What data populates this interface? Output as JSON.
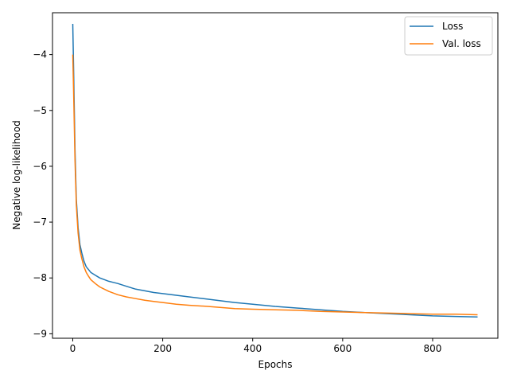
{
  "chart_data": {
    "type": "line",
    "title": "",
    "xlabel": "Epochs",
    "ylabel": "Negative log-likelihood",
    "xlim": [
      -45,
      945
    ],
    "ylim": [
      -9.08,
      -3.25
    ],
    "xticks": [
      0,
      200,
      400,
      600,
      800
    ],
    "xtick_labels": [
      "0",
      "200",
      "400",
      "600",
      "800"
    ],
    "yticks": [
      -9,
      -8,
      -7,
      -6,
      -5,
      -4
    ],
    "ytick_labels": [
      "−9",
      "−8",
      "−7",
      "−6",
      "−5",
      "−4"
    ],
    "grid": false,
    "legend_position": "top-right",
    "series": [
      {
        "name": "Loss",
        "color": "#1f77b4",
        "x": [
          0,
          2,
          5,
          8,
          12,
          16,
          20,
          25,
          30,
          35,
          40,
          50,
          60,
          70,
          80,
          90,
          100,
          120,
          140,
          160,
          180,
          200,
          230,
          260,
          300,
          330,
          360,
          400,
          450,
          500,
          550,
          600,
          650,
          700,
          750,
          800,
          850,
          900
        ],
        "y": [
          -3.45,
          -4.3,
          -5.7,
          -6.6,
          -7.1,
          -7.4,
          -7.55,
          -7.7,
          -7.8,
          -7.85,
          -7.9,
          -7.95,
          -8.0,
          -8.03,
          -8.06,
          -8.08,
          -8.1,
          -8.15,
          -8.2,
          -8.23,
          -8.26,
          -8.28,
          -8.31,
          -8.34,
          -8.38,
          -8.41,
          -8.44,
          -8.47,
          -8.51,
          -8.54,
          -8.57,
          -8.6,
          -8.62,
          -8.64,
          -8.66,
          -8.68,
          -8.69,
          -8.7
        ]
      },
      {
        "name": "Val. loss",
        "color": "#ff7f0e",
        "x": [
          0,
          2,
          5,
          8,
          12,
          16,
          20,
          25,
          30,
          35,
          40,
          50,
          60,
          70,
          80,
          90,
          100,
          120,
          140,
          160,
          180,
          200,
          230,
          260,
          300,
          330,
          360,
          400,
          450,
          500,
          550,
          600,
          650,
          700,
          750,
          800,
          850,
          900
        ],
        "y": [
          -4.0,
          -4.7,
          -5.9,
          -6.7,
          -7.2,
          -7.5,
          -7.65,
          -7.8,
          -7.9,
          -7.97,
          -8.03,
          -8.1,
          -8.16,
          -8.2,
          -8.24,
          -8.27,
          -8.3,
          -8.34,
          -8.37,
          -8.4,
          -8.42,
          -8.44,
          -8.47,
          -8.49,
          -8.51,
          -8.53,
          -8.55,
          -8.56,
          -8.57,
          -8.58,
          -8.6,
          -8.61,
          -8.62,
          -8.63,
          -8.64,
          -8.65,
          -8.65,
          -8.66
        ]
      }
    ]
  }
}
